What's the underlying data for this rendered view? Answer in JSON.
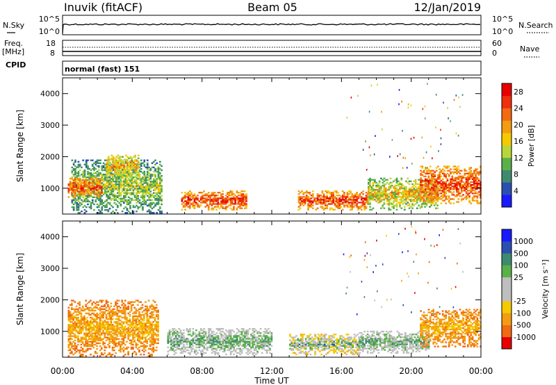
{
  "header": {
    "station": "Inuvik (fitACF)",
    "beam": "Beam 05",
    "date": "12/Jan/2019"
  },
  "strips": {
    "nsky_label": "N.Sky",
    "nsearch_label": "N.Search",
    "nsky_top_tick": "10^5",
    "nsky_bottom_tick": "10^0",
    "nsearch_top_tick": "10^5",
    "nsearch_bottom_tick": "10^0",
    "freq_label": "Freq.",
    "freq_unit": "[MHz]",
    "freq_top_tick": "18",
    "freq_bottom_tick": "8",
    "nave_label": "Nave",
    "nave_top_tick": "60",
    "nave_bottom_tick": "0",
    "cpid_label": "CPID",
    "cpid_value": "normal (fast) 151"
  },
  "colors": {
    "power_scale": [
      "#1a1aff",
      "#2b4fb0",
      "#3e8a6e",
      "#5bb04a",
      "#b8d63a",
      "#f5c900",
      "#f39c12",
      "#f26a12",
      "#ef2f0e",
      "#e60000"
    ],
    "velocity_scale": [
      "#e60000",
      "#f26a12",
      "#f39c12",
      "#f5c900",
      "#bebebe",
      "#bebebe",
      "#5bb04a",
      "#3e8a6e",
      "#2b4fb0",
      "#1a1aff"
    ]
  },
  "chart_data": [
    {
      "type": "heatmap",
      "title": "Power",
      "ylabel": "Slant Range [km]",
      "ylim": [
        180,
        4500
      ],
      "yticks": [
        "1000",
        "2000",
        "3000",
        "4000"
      ],
      "colorbar_label": "Power [dB]",
      "colorbar_ticks": [
        "4",
        "8",
        "12",
        "16",
        "20",
        "24",
        "28"
      ],
      "colorbar_range": [
        0,
        30
      ],
      "patches": [
        {
          "t0": 0.5,
          "t1": 5.7,
          "r0": 200,
          "r1": 1900,
          "level": "low-mid"
        },
        {
          "t0": 0.3,
          "t1": 2.2,
          "r0": 700,
          "r1": 1300,
          "level": "high"
        },
        {
          "t0": 2.5,
          "t1": 4.3,
          "r0": 1300,
          "r1": 2050,
          "level": "mid-high"
        },
        {
          "t0": 6.8,
          "t1": 10.5,
          "r0": 300,
          "r1": 900,
          "level": "high"
        },
        {
          "t0": 13.5,
          "t1": 17.5,
          "r0": 300,
          "r1": 900,
          "level": "high"
        },
        {
          "t0": 17.5,
          "t1": 21.5,
          "r0": 300,
          "r1": 1300,
          "level": "mid"
        },
        {
          "t0": 20.5,
          "t1": 24.0,
          "r0": 500,
          "r1": 1700,
          "level": "high"
        }
      ]
    },
    {
      "type": "heatmap",
      "title": "Velocity",
      "ylabel": "Slant Range [km]",
      "xlabel": "Time UT",
      "xticks": [
        "00:00",
        "04:00",
        "08:00",
        "12:00",
        "16:00",
        "20:00",
        "00:00"
      ],
      "xlim_hours": [
        0,
        24
      ],
      "ylim": [
        180,
        4500
      ],
      "yticks": [
        "1000",
        "2000",
        "3000",
        "4000"
      ],
      "colorbar_label": "Velocity [m s⁻¹]",
      "colorbar_ticks": [
        "1000",
        "500",
        "100",
        "25",
        "-25",
        "-100",
        "-500",
        "-1000"
      ],
      "patches": [
        {
          "t0": 0.3,
          "t1": 5.5,
          "r0": 200,
          "r1": 2000,
          "level": "-100 to -500"
        },
        {
          "t0": 6.0,
          "t1": 12.0,
          "r0": 250,
          "r1": 1100,
          "level": "25 to 100"
        },
        {
          "t0": 13.0,
          "t1": 17.0,
          "r0": 250,
          "r1": 900,
          "level": "-100 to 100"
        },
        {
          "t0": 17.0,
          "t1": 21.0,
          "r0": 300,
          "r1": 1000,
          "level": "25 to 100"
        },
        {
          "t0": 20.5,
          "t1": 24.0,
          "r0": 500,
          "r1": 1700,
          "level": "-100 to -500"
        }
      ]
    }
  ]
}
